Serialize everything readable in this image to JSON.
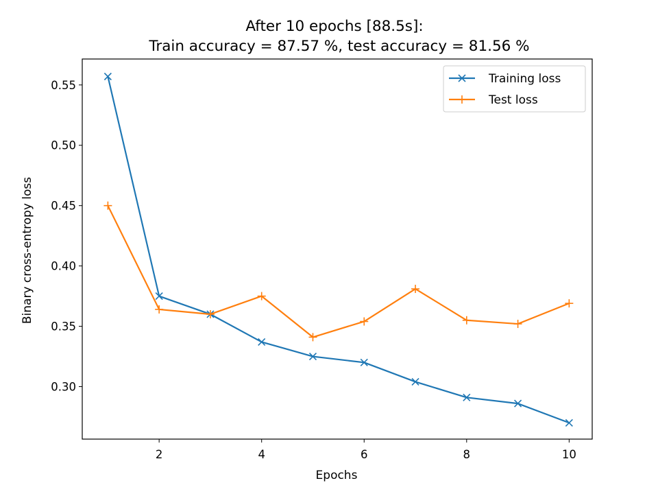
{
  "chart_data": {
    "type": "line",
    "title": "After 10 epochs [88.5s]:",
    "subtitle": "Train accuracy = 87.57 %, test accuracy = 81.56 %",
    "xlabel": "Epochs",
    "ylabel": "Binary cross-entropy loss",
    "xlim": [
      0.5,
      10.45
    ],
    "ylim": [
      0.2565,
      0.5715
    ],
    "xticks": [
      2,
      4,
      6,
      8,
      10
    ],
    "yticks": [
      0.3,
      0.35,
      0.4,
      0.45,
      0.5,
      0.55
    ],
    "xtick_labels": [
      "2",
      "4",
      "6",
      "8",
      "10"
    ],
    "ytick_labels": [
      "0.30",
      "0.35",
      "0.40",
      "0.45",
      "0.50",
      "0.55"
    ],
    "grid": false,
    "legend_position": "top-right",
    "x": [
      1,
      2,
      3,
      4,
      5,
      6,
      7,
      8,
      9,
      10
    ],
    "series": [
      {
        "name": "Training loss",
        "color": "#1f77b4",
        "marker": "x",
        "values": [
          0.557,
          0.375,
          0.36,
          0.337,
          0.325,
          0.32,
          0.304,
          0.291,
          0.286,
          0.27
        ]
      },
      {
        "name": "Test loss",
        "color": "#ff7f0e",
        "marker": "+",
        "values": [
          0.45,
          0.364,
          0.36,
          0.375,
          0.341,
          0.354,
          0.381,
          0.355,
          0.352,
          0.369
        ]
      }
    ]
  }
}
